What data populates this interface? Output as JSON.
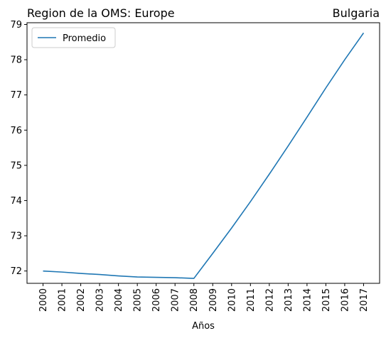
{
  "chart_data": {
    "type": "line",
    "title_left": "Region de la OMS: Europe",
    "title_right": "Bulgaria",
    "xlabel": "Años",
    "ylabel": "",
    "x": [
      2000,
      2001,
      2002,
      2003,
      2004,
      2005,
      2006,
      2007,
      2008,
      2009,
      2010,
      2011,
      2012,
      2013,
      2014,
      2015,
      2016,
      2017
    ],
    "x_tick_labels": [
      "2000",
      "2001",
      "2002",
      "2003",
      "2004",
      "2005",
      "2006",
      "2007",
      "2008",
      "2009",
      "2010",
      "2011",
      "2012",
      "2013",
      "2014",
      "2015",
      "2016",
      "2017"
    ],
    "y_ticks": [
      72,
      73,
      74,
      75,
      76,
      77,
      78,
      79
    ],
    "xlim": [
      1999.15,
      2017.85
    ],
    "ylim": [
      71.65,
      79.05
    ],
    "series": [
      {
        "name": "Promedio",
        "color": "#1f77b4",
        "values": [
          72.0,
          71.97,
          71.93,
          71.9,
          71.86,
          71.83,
          71.82,
          71.81,
          71.79,
          72.5,
          73.22,
          73.97,
          74.75,
          75.55,
          76.37,
          77.2,
          78.0,
          78.76
        ]
      }
    ],
    "legend_position": "upper-left",
    "grid": false
  }
}
